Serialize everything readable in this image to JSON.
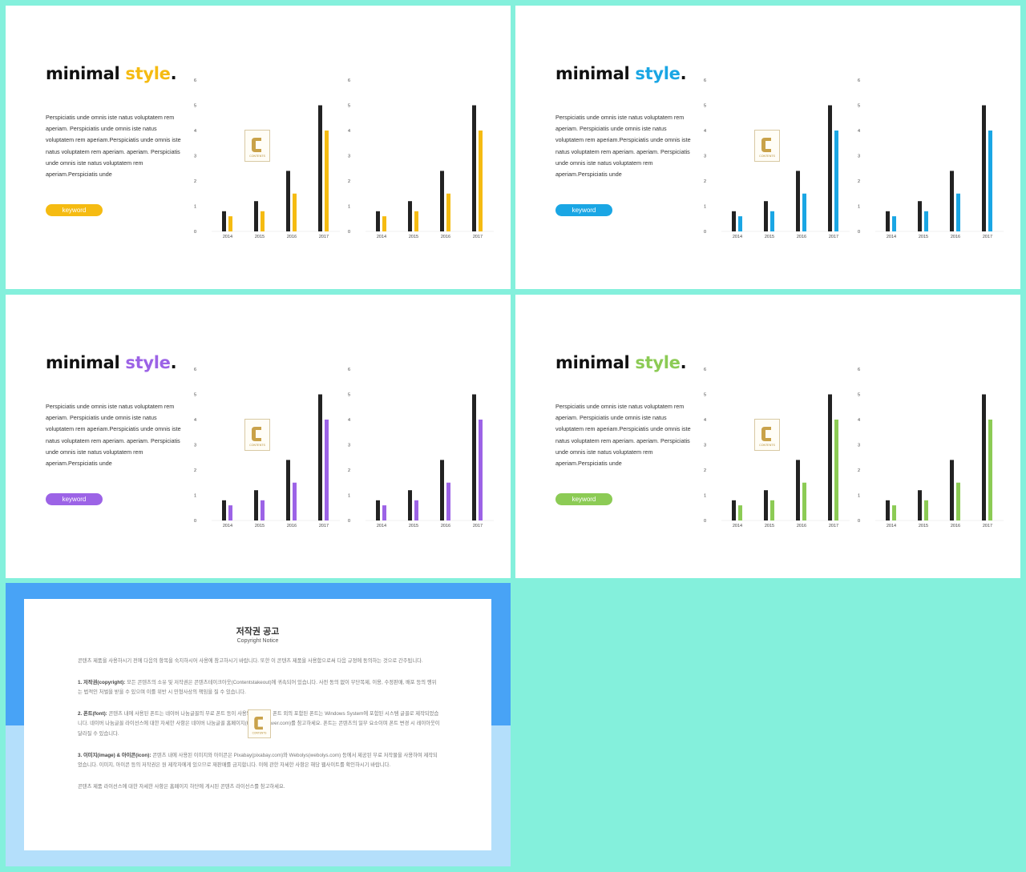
{
  "slides": [
    {
      "title_main": "minimal",
      "title_accent": "style",
      "title_dot": ".",
      "accent": "#f5bb12",
      "body": "Perspiciatis unde omnis iste natus voluptatem rem aperiam. Perspiciatis unde omnis iste natus voluptatem rem aperiam.Perspiciatis unde omnis iste natus voluptatem rem aperiam. aperiam. Perspiciatis unde omnis iste natus voluptatem rem aperiam.Perspiciatis unde",
      "keyword": "keyword"
    },
    {
      "title_main": "minimal",
      "title_accent": "style",
      "title_dot": ".",
      "accent": "#1aa6e4",
      "body": "Perspiciatis unde omnis iste natus voluptatem rem aperiam. Perspiciatis unde omnis iste natus voluptatem rem aperiam.Perspiciatis unde omnis iste natus voluptatem rem aperiam. aperiam. Perspiciatis unde omnis iste natus voluptatem rem aperiam.Perspiciatis unde",
      "keyword": "keyword"
    },
    {
      "title_main": "minimal",
      "title_accent": "style",
      "title_dot": ".",
      "accent": "#9c63e6",
      "body": "Perspiciatis unde omnis iste natus voluptatem rem aperiam. Perspiciatis unde omnis iste natus voluptatem rem aperiam.Perspiciatis unde omnis iste natus voluptatem rem aperiam. aperiam. Perspiciatis unde omnis iste natus voluptatem rem aperiam.Perspiciatis unde",
      "keyword": "keyword"
    },
    {
      "title_main": "minimal",
      "title_accent": "style",
      "title_dot": ".",
      "accent": "#8ccb55",
      "body": "Perspiciatis unde omnis iste natus voluptatem rem aperiam. Perspiciatis unde omnis iste natus voluptatem rem aperiam.Perspiciatis unde omnis iste natus voluptatem rem aperiam. aperiam. Perspiciatis unde omnis iste natus voluptatem rem aperiam.Perspiciatis unde",
      "keyword": "keyword"
    }
  ],
  "chart_data": {
    "type": "bar",
    "categories": [
      "2014",
      "2015",
      "2016",
      "2017"
    ],
    "series": [
      {
        "color": "#222222",
        "values": [
          0.8,
          1.2,
          2.4,
          5
        ]
      },
      {
        "color": "accent",
        "values": [
          0.6,
          0.8,
          1.5,
          4
        ]
      }
    ],
    "ylim": [
      0,
      6
    ],
    "yticks": [
      "0",
      "1",
      "2",
      "3",
      "4",
      "5",
      "6"
    ],
    "grid": false
  },
  "watermark": {
    "letter": "C",
    "text": "CONTENTS"
  },
  "copyright": {
    "title": "저작권 공고",
    "subtitle": "Copyright Notice",
    "intro": "콘텐츠 제품을 사용하시기 전에 다음의 항목을 숙지하시어 사용에 참고하시기 바랍니다. 또한 이 콘텐츠 제품을 사용함으로써 다음 규정에 동의하는 것으로 간주됩니다.",
    "s1_head": "1. 저작권(copyright):",
    "s1": "모든 콘텐츠의 소유 및 저작권은 콘텐츠테이크아웃(Contentstakeout)에 귀속되어 있습니다. 사전 동의 없이 무단복제, 이용, 수정판매, 배포 등의 행위는 법적인 처벌을 받을 수 있으며 이를 위반 시 민형사상의 책임을 질 수 있습니다.",
    "s2_head": "2. 폰트(font):",
    "s2": "콘텐츠 내에 사용된 폰트는 네이버 나눔글꼴의 무료 폰트 등이 사용되었습니다. 폰트 외의 포함된 폰트는 Windows System에 포함된 시스템 글꼴로 제작되었습니다. 네이버 나눔글꼴 라이선스에 대한 자세한 사항은 네이버 나눔글꼴 홈페이지(hangeul.naver.com)를 참고하세요. 폰트는 콘텐츠의 일부 요소이며 폰트 변경 시 레이아웃이 달라질 수 있습니다.",
    "s3_head": "3. 이미지(image) & 아이콘(icon):",
    "s3": "콘텐츠 내에 사용된 이미지와 아이콘은 Pixabay(pixabay.com)와 Webolys(webolys.com) 등에서 제공된 무료 저작물을 사용하여 제작되었습니다. 이미지, 아이콘 등의 저작권은 원 제작자에게 있으므로 재판매를 금지합니다. 이에 관한 자세한 사항은 해당 웹사이트를 확인하시기 바랍니다.",
    "outro": "콘텐츠 제품 라이선스에 대한 자세한 사항은 홈페이지 하단에 게시된 콘텐츠 라이선스를 참고하세요."
  }
}
